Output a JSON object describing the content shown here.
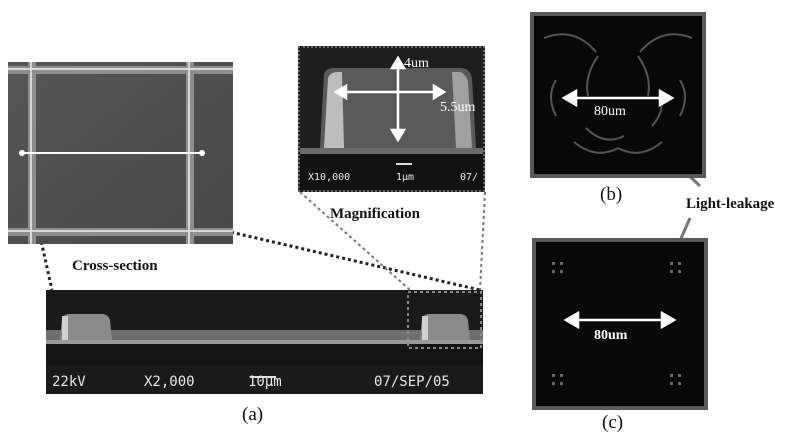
{
  "labels": {
    "cross_section": "Cross-section",
    "magnification": "Magnification",
    "light_leakage": "Light-leakage",
    "caption_a": "(a)",
    "caption_b": "(b)",
    "caption_c": "(c)"
  },
  "measurements": {
    "height": "4um",
    "width": "5.5um",
    "pitch_b": "80um",
    "pitch_c": "80um"
  },
  "sem_main": {
    "voltage": "22kV",
    "magnification": "X2,000",
    "scale": "10μm",
    "date": "07/SEP/05"
  },
  "sem_zoom": {
    "magnification": "X10,000",
    "scale": "1μm",
    "date": "07/"
  },
  "colors": {
    "sem_background": "#1a1a1a",
    "arrow": "#ffffff",
    "dotted_line": "#222222",
    "frame": "#555555"
  }
}
